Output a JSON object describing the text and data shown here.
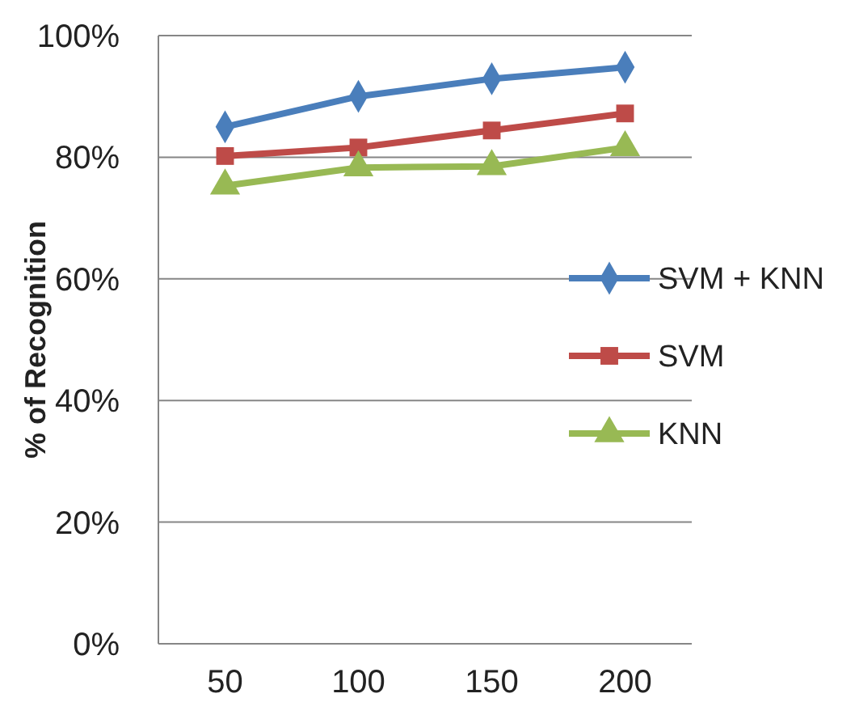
{
  "chart_data": {
    "type": "line",
    "ylabel": "% of Recognition",
    "categories": [
      "50",
      "100",
      "150",
      "200"
    ],
    "series": [
      {
        "name": "SVM + KNN",
        "color": "#4a7ebb",
        "marker": "diamond",
        "values": [
          85,
          90,
          92.9,
          94.8
        ]
      },
      {
        "name": "SVM",
        "color": "#be4b48",
        "marker": "square",
        "values": [
          80.2,
          81.6,
          84.4,
          87.2
        ]
      },
      {
        "name": "KNN",
        "color": "#98b954",
        "marker": "triangle",
        "values": [
          75.3,
          78.3,
          78.5,
          81.6
        ]
      }
    ],
    "ylim": [
      0,
      100
    ],
    "yticks": [
      {
        "value": 0,
        "label": "0%"
      },
      {
        "value": 20,
        "label": "20%"
      },
      {
        "value": 40,
        "label": "40%"
      },
      {
        "value": 60,
        "label": "60%"
      },
      {
        "value": 80,
        "label": "80%"
      },
      {
        "value": 100,
        "label": "100%"
      }
    ],
    "grid": "y",
    "legend": "right",
    "line_style": "solid"
  }
}
